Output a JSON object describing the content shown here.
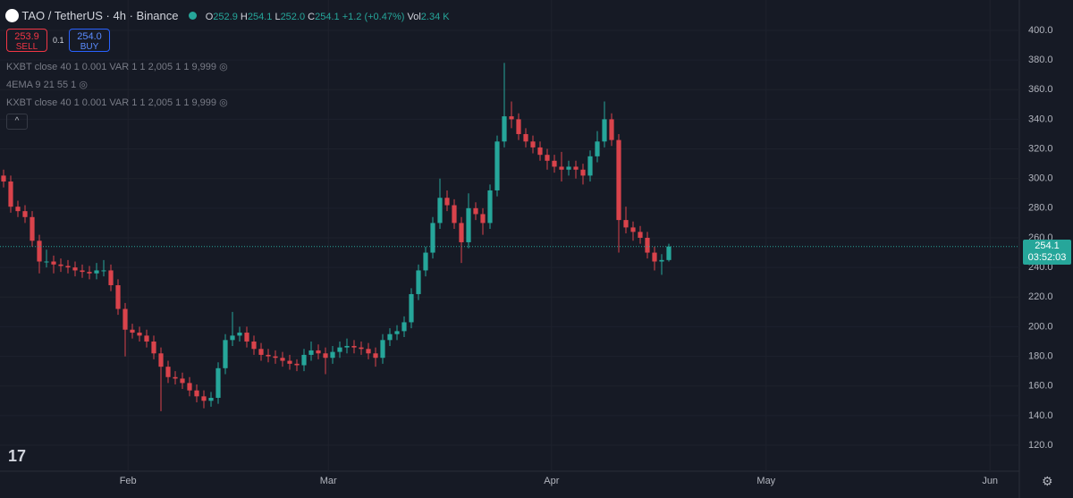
{
  "header": {
    "symbol": "TAO / TetherUS · 4h · Binance",
    "open_label": "O",
    "open": "252.9",
    "high_label": "H",
    "high": "254.1",
    "low_label": "L",
    "low": "252.0",
    "close_label": "C",
    "close": "254.1",
    "change": "+1.2 (+0.47%)",
    "vol_label": "Vol",
    "volume": "2.34 K"
  },
  "trade": {
    "sell_price": "253.9",
    "sell": "SELL",
    "spread": "0.1",
    "buy_price": "254.0",
    "buy": "BUY"
  },
  "indicators": [
    "KXBT close 40 1 0.001 VAR 1 1 2,005 1 1 9,999",
    "4EMA 9 21 55 1",
    "KXBT close 40 1 0.001 VAR 1 1 2,005 1 1 9,999"
  ],
  "countdown": "03:52:03",
  "chart_data": {
    "type": "candlestick",
    "up_color": "#26a69a",
    "down_color": "#d9434b",
    "grid": true,
    "current_price": 254.1,
    "x": [
      0,
      1,
      2,
      3,
      4,
      5,
      6,
      7,
      8,
      9,
      10,
      11,
      12,
      13,
      14,
      15,
      16,
      17,
      18,
      19,
      20,
      21,
      22,
      23,
      24,
      25,
      26,
      27,
      28,
      29,
      30,
      31,
      32,
      33,
      34,
      35,
      36,
      37,
      38,
      39,
      40,
      41,
      42,
      43,
      44,
      45,
      46,
      47,
      48,
      49,
      50,
      51,
      52,
      53,
      54,
      55,
      56,
      57,
      58,
      59,
      60,
      61,
      62,
      63,
      64,
      65,
      66,
      67,
      68,
      69,
      70,
      71,
      72,
      73,
      74,
      75,
      76,
      77,
      78,
      79,
      80,
      81,
      82,
      83,
      84,
      85,
      86,
      87,
      88,
      89,
      90,
      91,
      92,
      93
    ],
    "open": [
      302,
      298,
      281,
      278,
      274,
      258,
      244,
      244,
      242,
      241,
      240,
      238,
      237,
      236,
      238,
      238,
      228,
      212,
      198,
      196,
      194,
      190,
      182,
      173,
      166,
      165,
      162,
      157,
      153,
      150,
      152,
      172,
      191,
      194,
      196,
      190,
      185,
      181,
      180,
      179,
      177,
      175,
      174,
      181,
      184,
      182,
      179,
      183,
      186,
      187,
      186,
      185,
      182,
      179,
      191,
      195,
      197,
      203,
      222,
      238,
      250,
      270,
      287,
      282,
      270,
      257,
      280,
      276,
      270,
      292,
      325,
      342,
      340,
      330,
      325,
      321,
      316,
      312,
      308,
      306,
      308,
      306,
      302,
      315,
      325,
      340,
      326,
      272,
      267,
      264,
      260,
      250,
      244,
      245
    ],
    "high": [
      306,
      302,
      285,
      282,
      278,
      262,
      252,
      248,
      246,
      245,
      244,
      242,
      241,
      243,
      245,
      242,
      232,
      216,
      202,
      200,
      198,
      194,
      186,
      177,
      170,
      169,
      166,
      161,
      157,
      156,
      176,
      195,
      210,
      200,
      200,
      194,
      189,
      185,
      184,
      183,
      181,
      178,
      185,
      190,
      188,
      186,
      187,
      190,
      192,
      191,
      190,
      189,
      186,
      195,
      199,
      201,
      207,
      226,
      242,
      254,
      274,
      300,
      292,
      286,
      274,
      290,
      284,
      280,
      296,
      329,
      378,
      352,
      344,
      334,
      329,
      325,
      320,
      316,
      318,
      312,
      312,
      310,
      319,
      332,
      352,
      344,
      330,
      281,
      271,
      268,
      264,
      254,
      249,
      256
    ],
    "low": [
      294,
      277,
      274,
      270,
      254,
      236,
      240,
      236,
      237,
      236,
      234,
      233,
      232,
      232,
      234,
      224,
      208,
      180,
      192,
      190,
      186,
      178,
      143,
      162,
      161,
      158,
      153,
      149,
      145,
      146,
      148,
      168,
      187,
      190,
      186,
      181,
      177,
      176,
      175,
      173,
      171,
      170,
      170,
      177,
      178,
      168,
      175,
      179,
      182,
      182,
      181,
      178,
      173,
      175,
      187,
      191,
      193,
      199,
      218,
      234,
      246,
      266,
      278,
      266,
      243,
      253,
      272,
      262,
      266,
      288,
      321,
      334,
      326,
      321,
      317,
      312,
      306,
      304,
      298,
      302,
      300,
      296,
      298,
      311,
      321,
      322,
      250,
      263,
      258,
      256,
      246,
      238,
      235,
      244
    ],
    "close": [
      298,
      281,
      278,
      274,
      258,
      244,
      244,
      242,
      241,
      240,
      238,
      237,
      236,
      238,
      238,
      228,
      212,
      198,
      196,
      194,
      190,
      182,
      173,
      166,
      165,
      162,
      157,
      153,
      150,
      152,
      172,
      191,
      194,
      196,
      190,
      185,
      181,
      180,
      179,
      177,
      175,
      174,
      181,
      184,
      182,
      179,
      183,
      186,
      187,
      186,
      185,
      182,
      179,
      191,
      195,
      197,
      203,
      222,
      238,
      250,
      270,
      287,
      282,
      270,
      257,
      280,
      276,
      270,
      292,
      325,
      342,
      340,
      330,
      325,
      321,
      316,
      312,
      308,
      306,
      308,
      306,
      302,
      315,
      325,
      340,
      326,
      272,
      267,
      264,
      260,
      250,
      244,
      245,
      254.1
    ],
    "xlim": [
      -0.5,
      142
    ],
    "xticks": [
      {
        "value": 17.4,
        "label": "Feb"
      },
      {
        "value": 45.4,
        "label": "Mar"
      },
      {
        "value": 76.6,
        "label": "Apr"
      },
      {
        "value": 106.6,
        "label": "May"
      },
      {
        "value": 137.9,
        "label": "Jun"
      }
    ],
    "ylim": [
      102.5,
      420.5
    ],
    "yticks": [
      {
        "value": 120,
        "label": "120.0"
      },
      {
        "value": 140,
        "label": "140.0"
      },
      {
        "value": 160,
        "label": "160.0"
      },
      {
        "value": 180,
        "label": "180.0"
      },
      {
        "value": 200,
        "label": "200.0"
      },
      {
        "value": 220,
        "label": "220.0"
      },
      {
        "value": 240,
        "label": "240.0"
      },
      {
        "value": 260,
        "label": "260.0"
      },
      {
        "value": 280,
        "label": "280.0"
      },
      {
        "value": 300,
        "label": "300.0"
      },
      {
        "value": 320,
        "label": "320.0"
      },
      {
        "value": 340,
        "label": "340.0"
      },
      {
        "value": 360,
        "label": "360.0"
      },
      {
        "value": 380,
        "label": "380.0"
      },
      {
        "value": 400,
        "label": "400.0"
      }
    ]
  }
}
